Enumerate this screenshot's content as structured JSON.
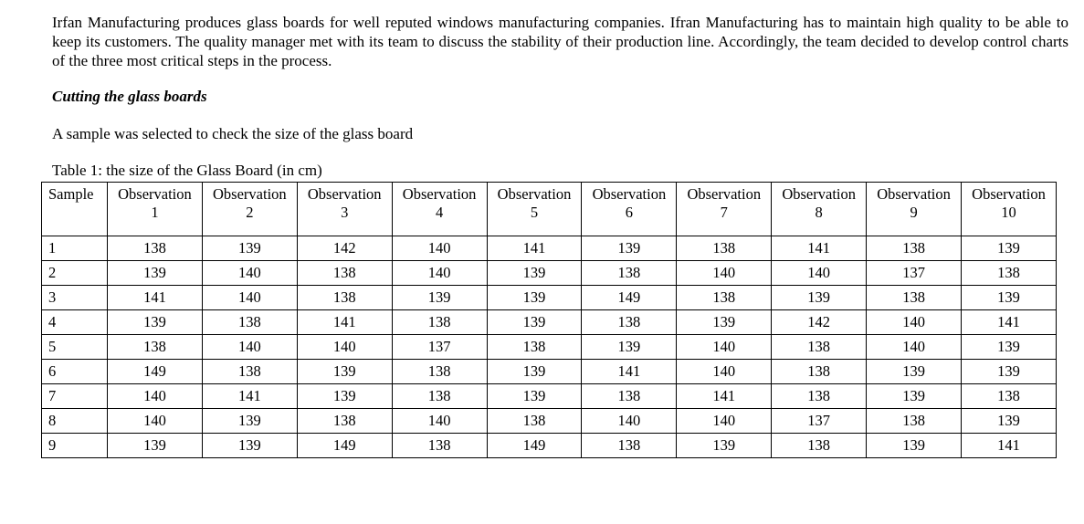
{
  "page": {
    "intro_paragraph": "Irfan Manufacturing produces glass boards for well reputed windows manufacturing companies. Ifran Manufacturing has to maintain high quality to be able to keep its customers. The quality manager met with its team to discuss the stability of their production line. Accordingly, the team decided to develop control charts of the three most critical steps in the process.",
    "section_heading": "Cutting the glass boards",
    "sample_sentence": "A sample was selected to check the size of the glass board",
    "table_caption": "Table 1: the size of the Glass Board (in cm)"
  },
  "colors": {
    "text": "#000000",
    "border": "#000000",
    "background": "#ffffff"
  },
  "table": {
    "columns": [
      {
        "label": "Sample"
      },
      {
        "label": "Observation",
        "number": "1"
      },
      {
        "label": "Observation",
        "number": "2"
      },
      {
        "label": "Observation",
        "number": "3"
      },
      {
        "label": "Observation",
        "number": "4"
      },
      {
        "label": "Observation",
        "number": "5"
      },
      {
        "label": "Observation",
        "number": "6"
      },
      {
        "label": "Observation",
        "number": "7"
      },
      {
        "label": "Observation",
        "number": "8"
      },
      {
        "label": "Observation",
        "number": "9"
      },
      {
        "label": "Observation",
        "number": "10"
      }
    ],
    "rows": [
      {
        "sample": "1",
        "values": [
          "138",
          "139",
          "142",
          "140",
          "141",
          "139",
          "138",
          "141",
          "138",
          "139"
        ]
      },
      {
        "sample": "2",
        "values": [
          "139",
          "140",
          "138",
          "140",
          "139",
          "138",
          "140",
          "140",
          "137",
          "138"
        ]
      },
      {
        "sample": "3",
        "values": [
          "141",
          "140",
          "138",
          "139",
          "139",
          "149",
          "138",
          "139",
          "138",
          "139"
        ]
      },
      {
        "sample": "4",
        "values": [
          "139",
          "138",
          "141",
          "138",
          "139",
          "138",
          "139",
          "142",
          "140",
          "141"
        ]
      },
      {
        "sample": "5",
        "values": [
          "138",
          "140",
          "140",
          "137",
          "138",
          "139",
          "140",
          "138",
          "140",
          "139"
        ]
      },
      {
        "sample": "6",
        "values": [
          "149",
          "138",
          "139",
          "138",
          "139",
          "141",
          "140",
          "138",
          "139",
          "139"
        ]
      },
      {
        "sample": "7",
        "values": [
          "140",
          "141",
          "139",
          "138",
          "139",
          "138",
          "141",
          "138",
          "139",
          "138"
        ]
      },
      {
        "sample": "8",
        "values": [
          "140",
          "139",
          "138",
          "140",
          "138",
          "140",
          "140",
          "137",
          "138",
          "139"
        ]
      },
      {
        "sample": "9",
        "values": [
          "139",
          "139",
          "149",
          "138",
          "149",
          "138",
          "139",
          "138",
          "139",
          "141"
        ]
      }
    ]
  }
}
